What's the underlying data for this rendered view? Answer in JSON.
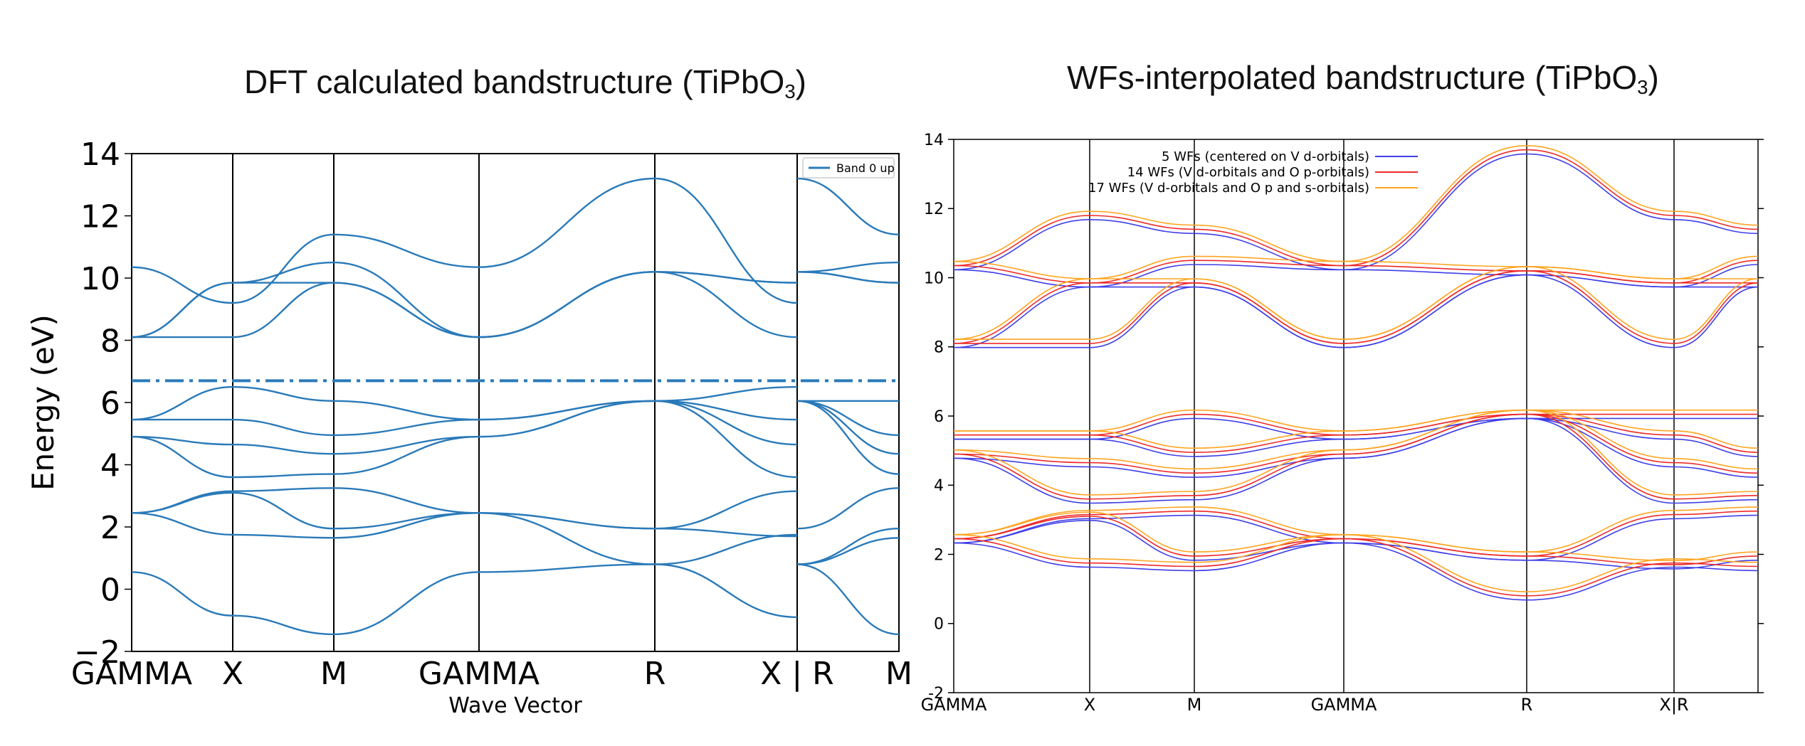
{
  "left_title": {
    "main": "DFT calculated bandstructure (TiPbO",
    "sub": "3",
    "close": ")"
  },
  "right_title": {
    "main": "WFs-interpolated bandstructure (TiPbO",
    "sub": "3",
    "close": ")"
  },
  "chart_data": [
    {
      "type": "line",
      "ylabel": "Energy (eV)",
      "xlabel": "Wave Vector",
      "ylim": [
        -2,
        14
      ],
      "yticks": [
        "−2",
        "0",
        "2",
        "4",
        "6",
        "8",
        "10",
        "12",
        "14"
      ],
      "kpoints": [
        "GAMMA",
        "X",
        "M",
        "GAMMA",
        "R",
        "X | R",
        "M"
      ],
      "legend": [
        "Band 0 up"
      ],
      "legend_placement": "top-right",
      "fermi_level": 6.7,
      "colors": {
        "bands": "#2a7ab9",
        "fermi": "#2a7ab9"
      },
      "bands": [
        [
          0.55,
          -0.85,
          -1.45,
          0.55,
          0.8,
          -0.9,
          0.8,
          -1.45
        ],
        [
          2.45,
          1.75,
          1.65,
          2.45,
          0.8,
          1.75,
          0.8,
          1.65
        ],
        [
          2.45,
          3.1,
          1.95,
          2.45,
          1.95,
          1.7,
          0.8,
          1.95
        ],
        [
          2.45,
          3.15,
          3.25,
          2.45,
          1.95,
          3.15,
          1.95,
          3.25
        ],
        [
          4.9,
          3.6,
          3.7,
          4.9,
          6.05,
          3.6,
          6.05,
          3.7
        ],
        [
          4.9,
          4.65,
          4.35,
          4.9,
          6.05,
          4.65,
          6.05,
          4.35
        ],
        [
          5.45,
          5.45,
          4.95,
          5.45,
          6.05,
          5.45,
          6.05,
          4.95
        ],
        [
          5.45,
          6.5,
          6.05,
          5.45,
          6.05,
          6.5,
          6.05,
          6.05
        ],
        [
          8.1,
          8.1,
          9.85,
          8.1,
          10.2,
          8.1,
          10.2,
          9.85
        ],
        [
          8.1,
          9.85,
          9.85,
          8.1,
          10.2,
          9.85,
          10.2,
          9.85
        ],
        [
          8.1,
          9.85,
          10.5,
          8.1,
          10.2,
          9.85,
          10.2,
          10.5
        ],
        [
          10.35,
          9.2,
          11.4,
          10.35,
          13.2,
          9.2,
          13.2,
          11.4
        ]
      ]
    },
    {
      "type": "line",
      "ylim": [
        -2,
        14
      ],
      "yticks": [
        "-2",
        "0",
        "2",
        "4",
        "6",
        "8",
        "10",
        "12",
        "14"
      ],
      "kpoints": [
        "GAMMA",
        "X",
        "M",
        "GAMMA",
        "R",
        "X|R"
      ],
      "legend_placement": "top-center",
      "series": [
        {
          "name": "5 WFs (centered on V d-orbitals)",
          "color": "#3f3fe8"
        },
        {
          "name": "14 WFs (V d-orbitals and O p-orbitals)",
          "color": "#ee2a2a"
        },
        {
          "name": "17 WFs (V d-orbitals and O p and s-orbitals)",
          "color": "#ffa520"
        }
      ],
      "bands": [
        [
          2.45,
          1.75,
          1.65,
          2.45,
          0.8,
          1.75,
          1.65
        ],
        [
          2.45,
          3.1,
          1.95,
          2.45,
          1.95,
          1.7,
          1.95
        ],
        [
          2.45,
          3.15,
          3.25,
          2.45,
          1.95,
          3.15,
          3.25
        ],
        [
          4.9,
          3.6,
          3.7,
          4.9,
          6.05,
          3.6,
          3.7
        ],
        [
          4.9,
          4.65,
          4.35,
          4.9,
          6.05,
          4.65,
          4.35
        ],
        [
          5.45,
          5.45,
          4.95,
          5.45,
          6.05,
          5.45,
          4.95
        ],
        [
          5.45,
          5.45,
          6.05,
          5.45,
          6.05,
          6.05,
          6.05
        ],
        [
          8.1,
          8.1,
          9.85,
          8.1,
          10.2,
          8.1,
          9.85
        ],
        [
          8.1,
          9.85,
          9.85,
          8.1,
          10.2,
          9.85,
          9.85
        ],
        [
          10.35,
          9.85,
          10.5,
          10.35,
          10.2,
          9.85,
          10.5
        ],
        [
          10.35,
          11.8,
          11.4,
          10.35,
          13.7,
          11.8,
          11.4
        ]
      ]
    }
  ]
}
